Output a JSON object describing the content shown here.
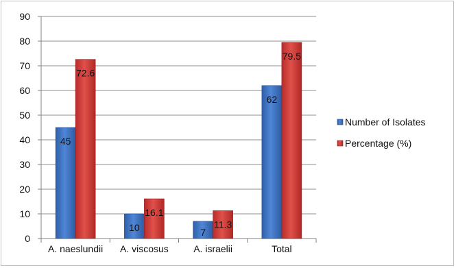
{
  "chart_data": {
    "type": "bar",
    "title": "",
    "xlabel": "",
    "ylabel": "",
    "categories": [
      "A. naeslundii",
      "A. viscosus",
      "A. israelii",
      "Total"
    ],
    "ylim": [
      0,
      90
    ],
    "yticks": [
      0,
      10,
      20,
      30,
      40,
      50,
      60,
      70,
      80,
      90
    ],
    "grid": true,
    "legend_position": "right",
    "series": [
      {
        "name": "Number of Isolates",
        "values": [
          45,
          10,
          7,
          62
        ],
        "labels": [
          "45",
          "10",
          "7",
          "62"
        ],
        "color": "#3f72c0"
      },
      {
        "name": "Percentage (%)",
        "values": [
          72.6,
          16.1,
          11.3,
          79.5
        ],
        "labels": [
          "72.6",
          "16.1",
          "11.3",
          "79.5"
        ],
        "color": "#cf3a36"
      }
    ]
  }
}
